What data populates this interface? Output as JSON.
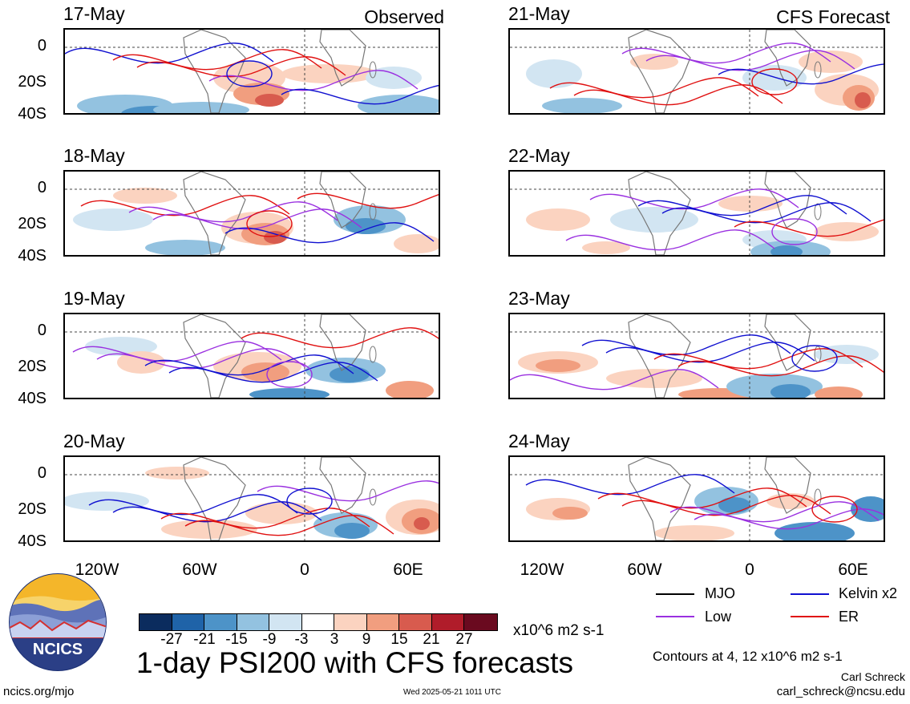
{
  "panels_left": [
    {
      "date": "17-May",
      "corner": "Observed"
    },
    {
      "date": "18-May",
      "corner": ""
    },
    {
      "date": "19-May",
      "corner": ""
    },
    {
      "date": "20-May",
      "corner": ""
    }
  ],
  "panels_right": [
    {
      "date": "21-May",
      "corner": "CFS Forecast"
    },
    {
      "date": "22-May",
      "corner": ""
    },
    {
      "date": "23-May",
      "corner": ""
    },
    {
      "date": "24-May",
      "corner": ""
    }
  ],
  "lat_labels": [
    "0",
    "20S",
    "40S"
  ],
  "lon_labels": [
    "120W",
    "60W",
    "0",
    "60E"
  ],
  "legend": {
    "mjo": "MJO",
    "kelvin": "Kelvin x2",
    "low": "Low",
    "er": "ER",
    "colors": {
      "mjo": "#000000",
      "kelvin": "#1010d0",
      "low": "#9a30e0",
      "er": "#e01010"
    }
  },
  "colorbar": {
    "ticks": [
      "-27",
      "-21",
      "-15",
      "-9",
      "-3",
      "3",
      "9",
      "15",
      "21",
      "27"
    ],
    "colors": [
      "#0b2c5e",
      "#1f63a8",
      "#4d93c8",
      "#93c2e0",
      "#d2e5f2",
      "#ffffff",
      "#fbd3c0",
      "#f19e7f",
      "#d85b4e",
      "#b01c2a",
      "#6a0a1f"
    ],
    "units": "x10^6 m2 s-1"
  },
  "title": "1-day PSI200 with CFS forecasts",
  "contours_note": "Contours at 4, 12 x10^6 m2 s-1",
  "author": "Carl Schreck",
  "email": "carl_schreck@ncsu.edu",
  "url": "ncics.org/mjo",
  "timestamp": "Wed 2025-05-21 1011 UTC",
  "logo_text": "NCICS"
}
